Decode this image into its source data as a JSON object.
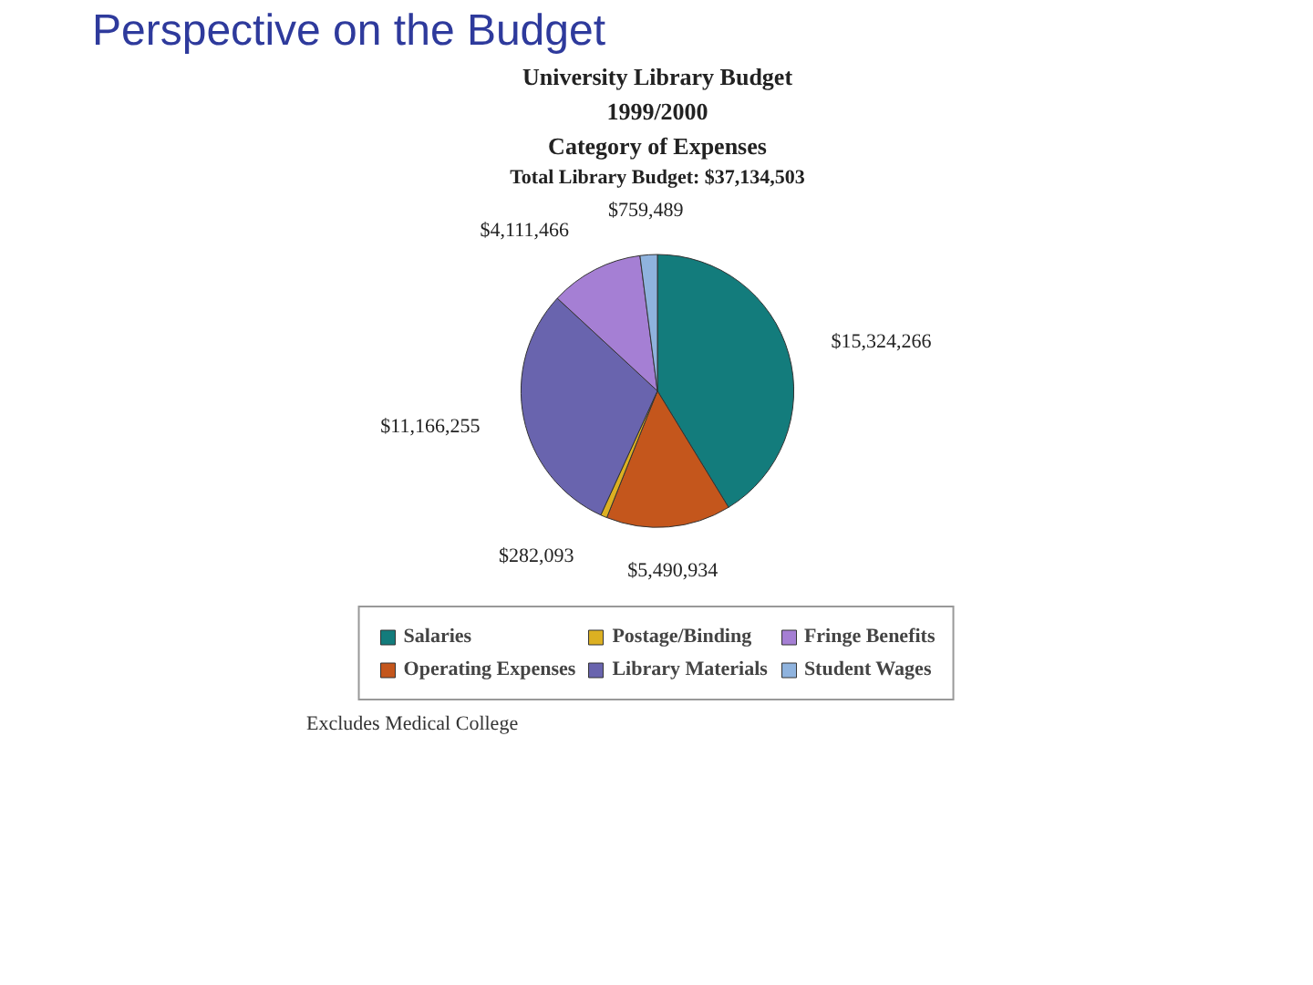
{
  "chart_data": {
    "type": "pie",
    "title": "Perspective on the Budget",
    "subtitle": "University Library Budget",
    "annotations": [
      "1999/2000",
      "Category of Expenses",
      "Total Library Budget: $37,134,503",
      "Excludes Medical College"
    ],
    "categories": [
      "Salaries",
      "Operating Expenses",
      "Postage/Binding",
      "Library Materials",
      "Fringe Benefits",
      "Student Wages"
    ],
    "values": [
      15324266,
      5490934,
      282093,
      11166255,
      4111466,
      759489
    ],
    "value_labels": [
      "$15,324,266",
      "$5,490,934",
      "$282,093",
      "$11,166,255",
      "$4,111,466",
      "$759,489"
    ],
    "colors": [
      "#137c7c",
      "#c4561c",
      "#dcb022",
      "#6964ae",
      "#a57fd4",
      "#8fb3de"
    ],
    "legend": "bottom"
  }
}
